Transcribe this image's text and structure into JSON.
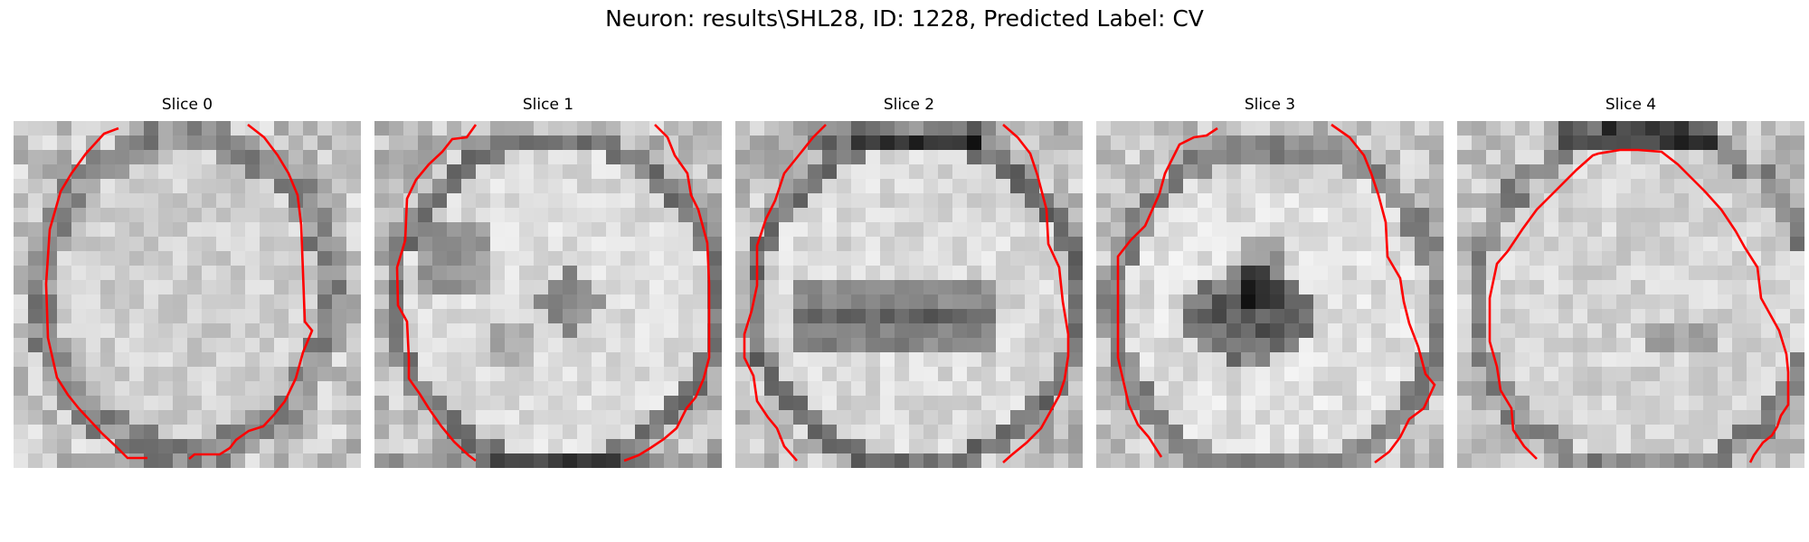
{
  "figure": {
    "title": "Neuron: results\\SHL28, ID: 1228, Predicted Label: CV"
  },
  "panels": [
    {
      "title": "Slice 0",
      "pattern": "uniform"
    },
    {
      "title": "Slice 1",
      "pattern": "blobs"
    },
    {
      "title": "Slice 2",
      "pattern": "band"
    },
    {
      "title": "Slice 3",
      "pattern": "center"
    },
    {
      "title": "Slice 4",
      "pattern": "faint"
    }
  ],
  "colors": {
    "contour": "#ff0000"
  }
}
